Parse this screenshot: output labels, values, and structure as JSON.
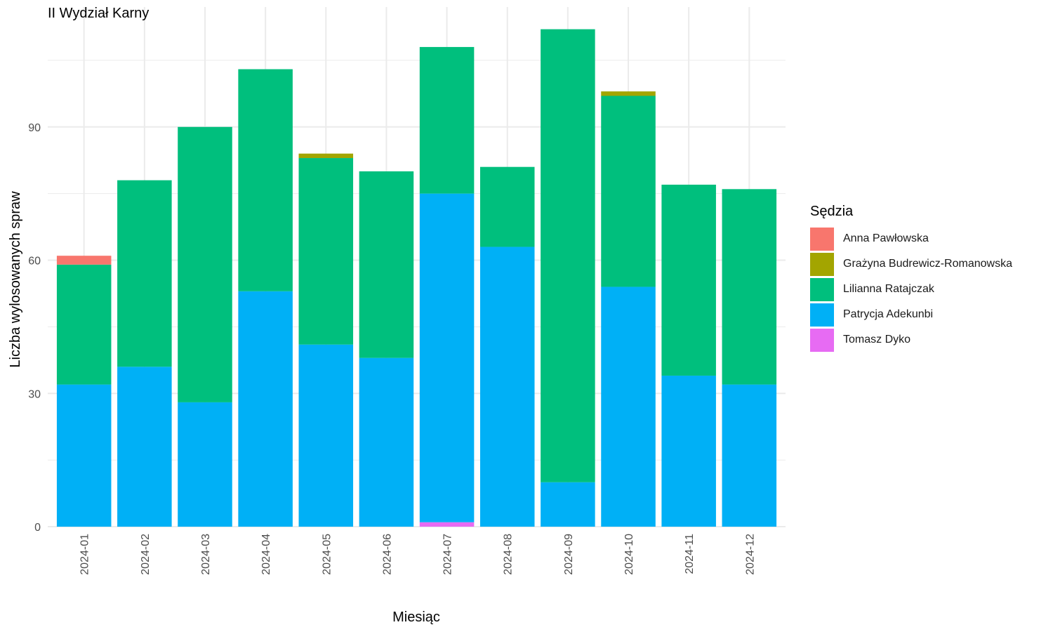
{
  "chart_data": {
    "type": "bar",
    "stacked": true,
    "title": "II Wydział Karny",
    "xlabel": "Miesiąc",
    "ylabel": "Liczba wylosowanych spraw",
    "legend_title": "Sędzia",
    "legend_position": "right",
    "ylim": [
      0,
      117
    ],
    "yticks": [
      0,
      30,
      60,
      90
    ],
    "grid": true,
    "categories": [
      "2024-01",
      "2024-02",
      "2024-03",
      "2024-04",
      "2024-05",
      "2024-06",
      "2024-07",
      "2024-08",
      "2024-09",
      "2024-10",
      "2024-11",
      "2024-12"
    ],
    "series": [
      {
        "name": "Anna Pawłowska",
        "color": "#F8766D",
        "values": [
          2,
          0,
          0,
          0,
          0,
          0,
          0,
          0,
          0,
          0,
          0,
          0
        ]
      },
      {
        "name": "Grażyna Budrewicz-Romanowska",
        "color": "#A3A500",
        "values": [
          0,
          0,
          0,
          0,
          1,
          0,
          0,
          0,
          0,
          1,
          0,
          0
        ]
      },
      {
        "name": "Lilianna Ratajczak",
        "color": "#00BF7D",
        "values": [
          27,
          42,
          62,
          50,
          42,
          42,
          33,
          18,
          102,
          43,
          43,
          44
        ]
      },
      {
        "name": "Patrycja Adekunbi",
        "color": "#00B0F6",
        "values": [
          32,
          36,
          28,
          53,
          41,
          38,
          74,
          63,
          10,
          54,
          34,
          32
        ]
      },
      {
        "name": "Tomasz Dyko",
        "color": "#E76BF3",
        "values": [
          0,
          0,
          0,
          0,
          0,
          0,
          1,
          0,
          0,
          0,
          0,
          0
        ]
      }
    ]
  }
}
